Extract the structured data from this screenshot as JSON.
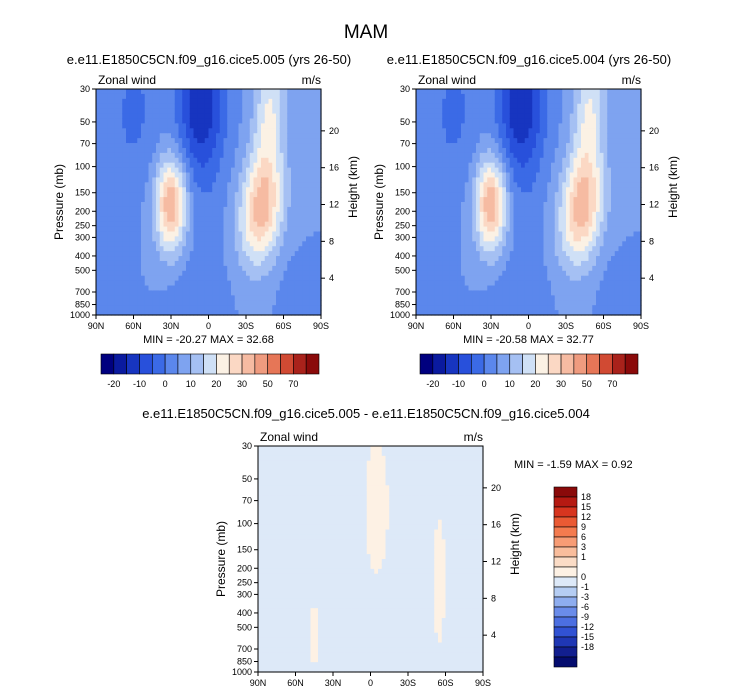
{
  "figure": {
    "main_title": "MAM",
    "panel_left_title": "e.e11.E1850C5CN.f09_g16.cice5.005 (yrs 26-50)",
    "panel_right_title": "e.e11.E1850C5CN.f09_g16.cice5.004 (yrs 26-50)",
    "panel_diff_title": "e.e11.E1850C5CN.f09_g16.cice5.005 - e.e11.E1850C5CN.f09_g16.cice5.004"
  },
  "chart_data": [
    {
      "type": "heatmap",
      "name": "panel-left",
      "variable": "Zonal wind",
      "units": "m/s",
      "ylabel": "Pressure (mb)",
      "ylabel_right": "Height (km)",
      "x_ticks": [
        "90N",
        "60N",
        "30N",
        "0",
        "30S",
        "60S",
        "90S"
      ],
      "xlim": [
        90,
        -90
      ],
      "pressure_ticks": [
        30,
        50,
        70,
        100,
        150,
        200,
        250,
        300,
        400,
        500,
        700,
        850,
        1000
      ],
      "ylim": [
        1000,
        30
      ],
      "y_scale": "log",
      "height_ticks": [
        4,
        8,
        12,
        16,
        20
      ],
      "min_label": "MIN = -20.27",
      "max_label": "MAX = 32.68",
      "min": -20.27,
      "max": 32.68
    },
    {
      "type": "heatmap",
      "name": "panel-right",
      "variable": "Zonal wind",
      "units": "m/s",
      "ylabel": "Pressure (mb)",
      "ylabel_right": "Height (km)",
      "x_ticks": [
        "90N",
        "60N",
        "30N",
        "0",
        "30S",
        "60S",
        "90S"
      ],
      "xlim": [
        90,
        -90
      ],
      "pressure_ticks": [
        30,
        50,
        70,
        100,
        150,
        200,
        250,
        300,
        400,
        500,
        700,
        850,
        1000
      ],
      "ylim": [
        1000,
        30
      ],
      "y_scale": "log",
      "height_ticks": [
        4,
        8,
        12,
        16,
        20
      ],
      "min_label": "MIN = -20.58",
      "max_label": "MAX = 32.77",
      "min": -20.58,
      "max": 32.77
    },
    {
      "type": "heatmap",
      "name": "panel-diff",
      "variable": "Zonal wind",
      "units": "m/s",
      "ylabel": "Pressure (mb)",
      "ylabel_right": "Height (km)",
      "x_ticks": [
        "90N",
        "60N",
        "30N",
        "0",
        "30S",
        "60S",
        "90S"
      ],
      "xlim": [
        90,
        -90
      ],
      "pressure_ticks": [
        30,
        50,
        70,
        100,
        150,
        200,
        250,
        300,
        400,
        500,
        700,
        850,
        1000
      ],
      "ylim": [
        1000,
        30
      ],
      "y_scale": "log",
      "height_ticks": [
        4,
        8,
        12,
        16,
        20
      ],
      "min_label": "MIN = -1.59",
      "max_label": "MAX =  0.92",
      "min": -1.59,
      "max": 0.92
    }
  ],
  "colorbars": {
    "main": {
      "orientation": "horizontal",
      "colors": [
        "#00007f",
        "#0a1a9f",
        "#1735c0",
        "#2850db",
        "#3b6ae6",
        "#5b87ec",
        "#7ea3f0",
        "#a5c0f3",
        "#cfe0f6",
        "#fbf1e4",
        "#fbd8c4",
        "#f6bba2",
        "#ef9b7f",
        "#e67657",
        "#d14a33",
        "#a9221b",
        "#8a0a0a"
      ],
      "labels": [
        "-20",
        "-10",
        "0",
        "10",
        "20",
        "30",
        "50",
        "70"
      ]
    },
    "diff": {
      "orientation": "vertical",
      "colors": [
        "#8a0a0a",
        "#b51a12",
        "#d7351f",
        "#ea5a34",
        "#f47b4f",
        "#f79c75",
        "#f9bd9c",
        "#fbdcc6",
        "#fdf1e4",
        "#dde9f8",
        "#b5cdf3",
        "#8eadef",
        "#6a8cea",
        "#4c6fe1",
        "#3152d3",
        "#1f37b4",
        "#121f8f",
        "#040c6e"
      ],
      "labels": [
        "18",
        "15",
        "12",
        "9",
        "6",
        "3",
        "1",
        "0",
        "-1",
        "-3",
        "-6",
        "-9",
        "-12",
        "-15",
        "-18"
      ]
    }
  }
}
